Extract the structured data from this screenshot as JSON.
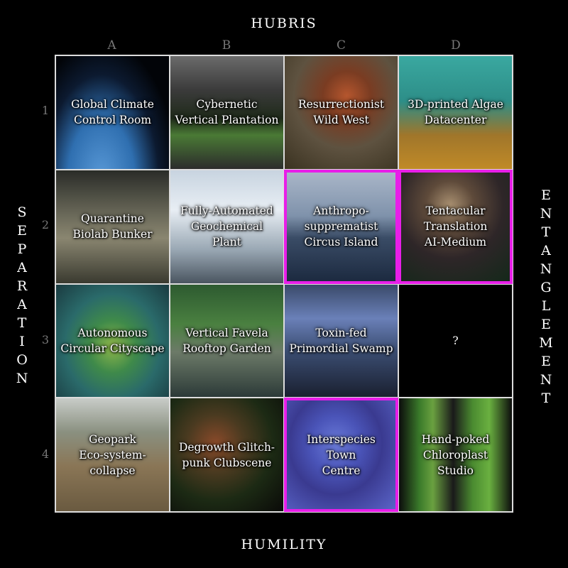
{
  "axes": {
    "top": "HUBRIS",
    "bottom": "HUMILITY",
    "left": "SEPARATION",
    "right": "ENTANGLEMENT"
  },
  "columns": [
    "A",
    "B",
    "C",
    "D"
  ],
  "rows": [
    "1",
    "2",
    "3",
    "4"
  ],
  "highlight_color": "#e81ee8",
  "cells": [
    {
      "col": "A",
      "row": "1",
      "lines": [
        "Global Climate",
        "Control Room"
      ],
      "highlighted": false
    },
    {
      "col": "B",
      "row": "1",
      "lines": [
        "Cybernetic",
        "Vertical Plantation"
      ],
      "highlighted": false
    },
    {
      "col": "C",
      "row": "1",
      "lines": [
        "Resurrectionist",
        "Wild West"
      ],
      "highlighted": false
    },
    {
      "col": "D",
      "row": "1",
      "lines": [
        "3D-printed Algae",
        "Datacenter"
      ],
      "highlighted": false
    },
    {
      "col": "A",
      "row": "2",
      "lines": [
        "Quarantine",
        "Biolab Bunker"
      ],
      "highlighted": false
    },
    {
      "col": "B",
      "row": "2",
      "lines": [
        "Fully-Automated",
        "Geochemical",
        "Plant"
      ],
      "highlighted": false
    },
    {
      "col": "C",
      "row": "2",
      "lines": [
        "Anthropo-",
        "supprematist",
        "Circus Island"
      ],
      "highlighted": true
    },
    {
      "col": "D",
      "row": "2",
      "lines": [
        "Tentacular",
        "Translation",
        "AI-Medium"
      ],
      "highlighted": true
    },
    {
      "col": "A",
      "row": "3",
      "lines": [
        "Autonomous",
        "Circular Cityscape"
      ],
      "highlighted": false
    },
    {
      "col": "B",
      "row": "3",
      "lines": [
        "Vertical Favela",
        "Rooftop Garden"
      ],
      "highlighted": false
    },
    {
      "col": "C",
      "row": "3",
      "lines": [
        "Toxin-fed",
        "Primordial Swamp"
      ],
      "highlighted": false
    },
    {
      "col": "D",
      "row": "3",
      "lines": [
        "?"
      ],
      "highlighted": false
    },
    {
      "col": "A",
      "row": "4",
      "lines": [
        "Geopark",
        "Eco-system-",
        "collapse"
      ],
      "highlighted": false
    },
    {
      "col": "B",
      "row": "4",
      "lines": [
        "Degrowth Glitch-",
        "punk Clubscene"
      ],
      "highlighted": false
    },
    {
      "col": "C",
      "row": "4",
      "lines": [
        "Interspecies Town",
        "Centre"
      ],
      "highlighted": true
    },
    {
      "col": "D",
      "row": "4",
      "lines": [
        "Hand-poked",
        "Chloroplast",
        "Studio"
      ],
      "highlighted": false
    }
  ]
}
